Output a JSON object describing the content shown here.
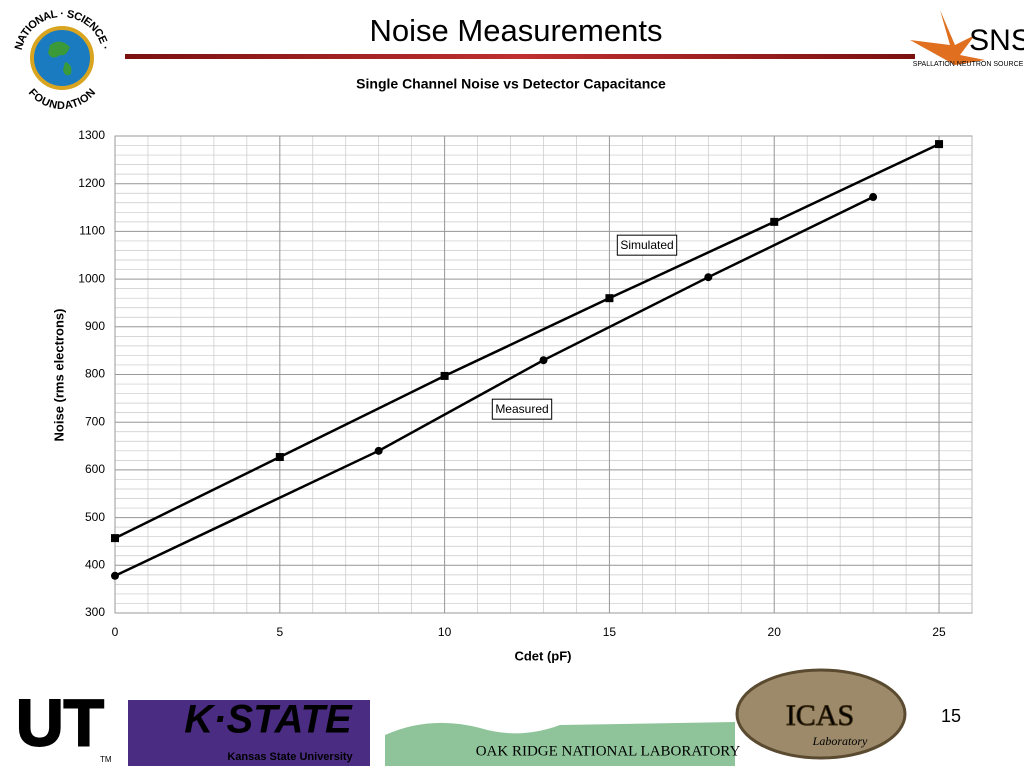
{
  "slide": {
    "title": "Noise Measurements",
    "page_number": "15",
    "logos": {
      "nsf_top": "NATIONAL · SCIENCE ·",
      "nsf_bottom": "FOUNDATION",
      "sns": "SNS",
      "sns_sub": "SPALLATION NEUTRON SOURCE",
      "ut": "UT",
      "ut_tm": "TM",
      "kstate": "K·STATE",
      "kstate_sub": "Kansas State University",
      "ornl": "OAK RIDGE NATIONAL LABORATORY",
      "icas": "ICAS",
      "icas_sub": "Laboratory"
    }
  },
  "chart_data": {
    "type": "line",
    "title": "Single Channel Noise vs Detector Capacitance",
    "x_label": "Cdet (pF)",
    "y_label": "Noise (rms electrons)",
    "xlim": [
      0,
      26
    ],
    "xticks": [
      0,
      5,
      10,
      15,
      20,
      25
    ],
    "ylim": [
      300,
      1300
    ],
    "yticks": [
      300,
      400,
      500,
      600,
      700,
      800,
      900,
      1000,
      1100,
      1200,
      1300
    ],
    "grid": true,
    "minor_grid": {
      "x": 1,
      "y": 20
    },
    "series": [
      {
        "name": "Simulated",
        "color": "#000000",
        "marker": "square",
        "x": [
          0,
          5,
          10,
          15,
          20,
          25
        ],
        "values": [
          457,
          627,
          797,
          960,
          1120,
          1283
        ]
      },
      {
        "name": "Measured",
        "color": "#000000",
        "marker": "circle",
        "x": [
          0,
          8,
          13,
          18,
          23
        ],
        "values": [
          378,
          640,
          830,
          1004,
          1172
        ]
      }
    ]
  }
}
